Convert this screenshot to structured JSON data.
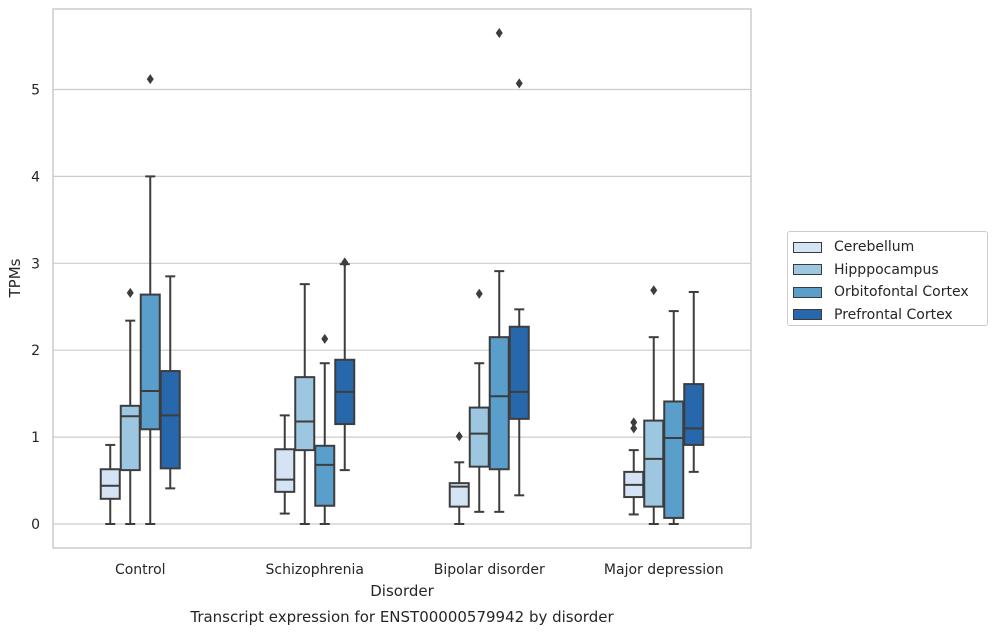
{
  "chart_data": {
    "type": "box",
    "title": "Transcript expression for ENST00000579942 by disorder",
    "xlabel": "Disorder",
    "ylabel": "TPMs",
    "ylim": [
      -0.28,
      5.95
    ],
    "yticks": [
      0,
      1,
      2,
      3,
      4,
      5
    ],
    "grid": "horizontal",
    "legend_position": "right",
    "categories": [
      "Control",
      "Schizophrenia",
      "Bipolar disorder",
      "Major depression"
    ],
    "series": [
      {
        "name": "Cerebellum",
        "color": "#d4e4f4",
        "boxes": [
          {
            "whisker_low": 0.0,
            "q1": 0.29,
            "median": 0.44,
            "q3": 0.63,
            "whisker_high": 0.91,
            "outliers": []
          },
          {
            "whisker_low": 0.12,
            "q1": 0.37,
            "median": 0.51,
            "q3": 0.86,
            "whisker_high": 1.25,
            "outliers": []
          },
          {
            "whisker_low": 0.0,
            "q1": 0.2,
            "median": 0.43,
            "q3": 0.47,
            "whisker_high": 0.71,
            "outliers": [
              1.01
            ]
          },
          {
            "whisker_low": 0.11,
            "q1": 0.31,
            "median": 0.45,
            "q3": 0.6,
            "whisker_high": 0.85,
            "outliers": [
              1.1,
              1.17
            ]
          }
        ]
      },
      {
        "name": "Hipppocampus",
        "color": "#9dc6e0",
        "boxes": [
          {
            "whisker_low": 0.0,
            "q1": 0.62,
            "median": 1.24,
            "q3": 1.36,
            "whisker_high": 2.34,
            "outliers": [
              2.66
            ]
          },
          {
            "whisker_low": 0.0,
            "q1": 0.85,
            "median": 1.18,
            "q3": 1.69,
            "whisker_high": 2.76,
            "outliers": []
          },
          {
            "whisker_low": 0.14,
            "q1": 0.66,
            "median": 1.04,
            "q3": 1.34,
            "whisker_high": 1.85,
            "outliers": [
              2.65
            ]
          },
          {
            "whisker_low": 0.0,
            "q1": 0.2,
            "median": 0.75,
            "q3": 1.19,
            "whisker_high": 2.15,
            "outliers": [
              2.69
            ]
          }
        ]
      },
      {
        "name": "Orbitofontal Cortex",
        "color": "#5a9ecb",
        "boxes": [
          {
            "whisker_low": 0.0,
            "q1": 1.09,
            "median": 1.53,
            "q3": 2.64,
            "whisker_high": 4.0,
            "outliers": [
              5.12
            ]
          },
          {
            "whisker_low": 0.0,
            "q1": 0.21,
            "median": 0.68,
            "q3": 0.9,
            "whisker_high": 1.85,
            "outliers": [
              2.13
            ]
          },
          {
            "whisker_low": 0.14,
            "q1": 0.63,
            "median": 1.47,
            "q3": 2.15,
            "whisker_high": 2.91,
            "outliers": [
              5.65
            ]
          },
          {
            "whisker_low": 0.0,
            "q1": 0.07,
            "median": 0.99,
            "q3": 1.41,
            "whisker_high": 2.45,
            "outliers": []
          }
        ]
      },
      {
        "name": "Prefrontal Cortex",
        "color": "#2767ac",
        "boxes": [
          {
            "whisker_low": 0.41,
            "q1": 0.64,
            "median": 1.25,
            "q3": 1.76,
            "whisker_high": 2.85,
            "outliers": []
          },
          {
            "whisker_low": 0.62,
            "q1": 1.15,
            "median": 1.52,
            "q3": 1.89,
            "whisker_high": 2.99,
            "outliers": [
              3.01
            ]
          },
          {
            "whisker_low": 0.33,
            "q1": 1.21,
            "median": 1.52,
            "q3": 2.27,
            "whisker_high": 2.47,
            "outliers": [
              5.07
            ]
          },
          {
            "whisker_low": 0.6,
            "q1": 0.91,
            "median": 1.1,
            "q3": 1.61,
            "whisker_high": 2.67,
            "outliers": []
          }
        ]
      }
    ]
  }
}
